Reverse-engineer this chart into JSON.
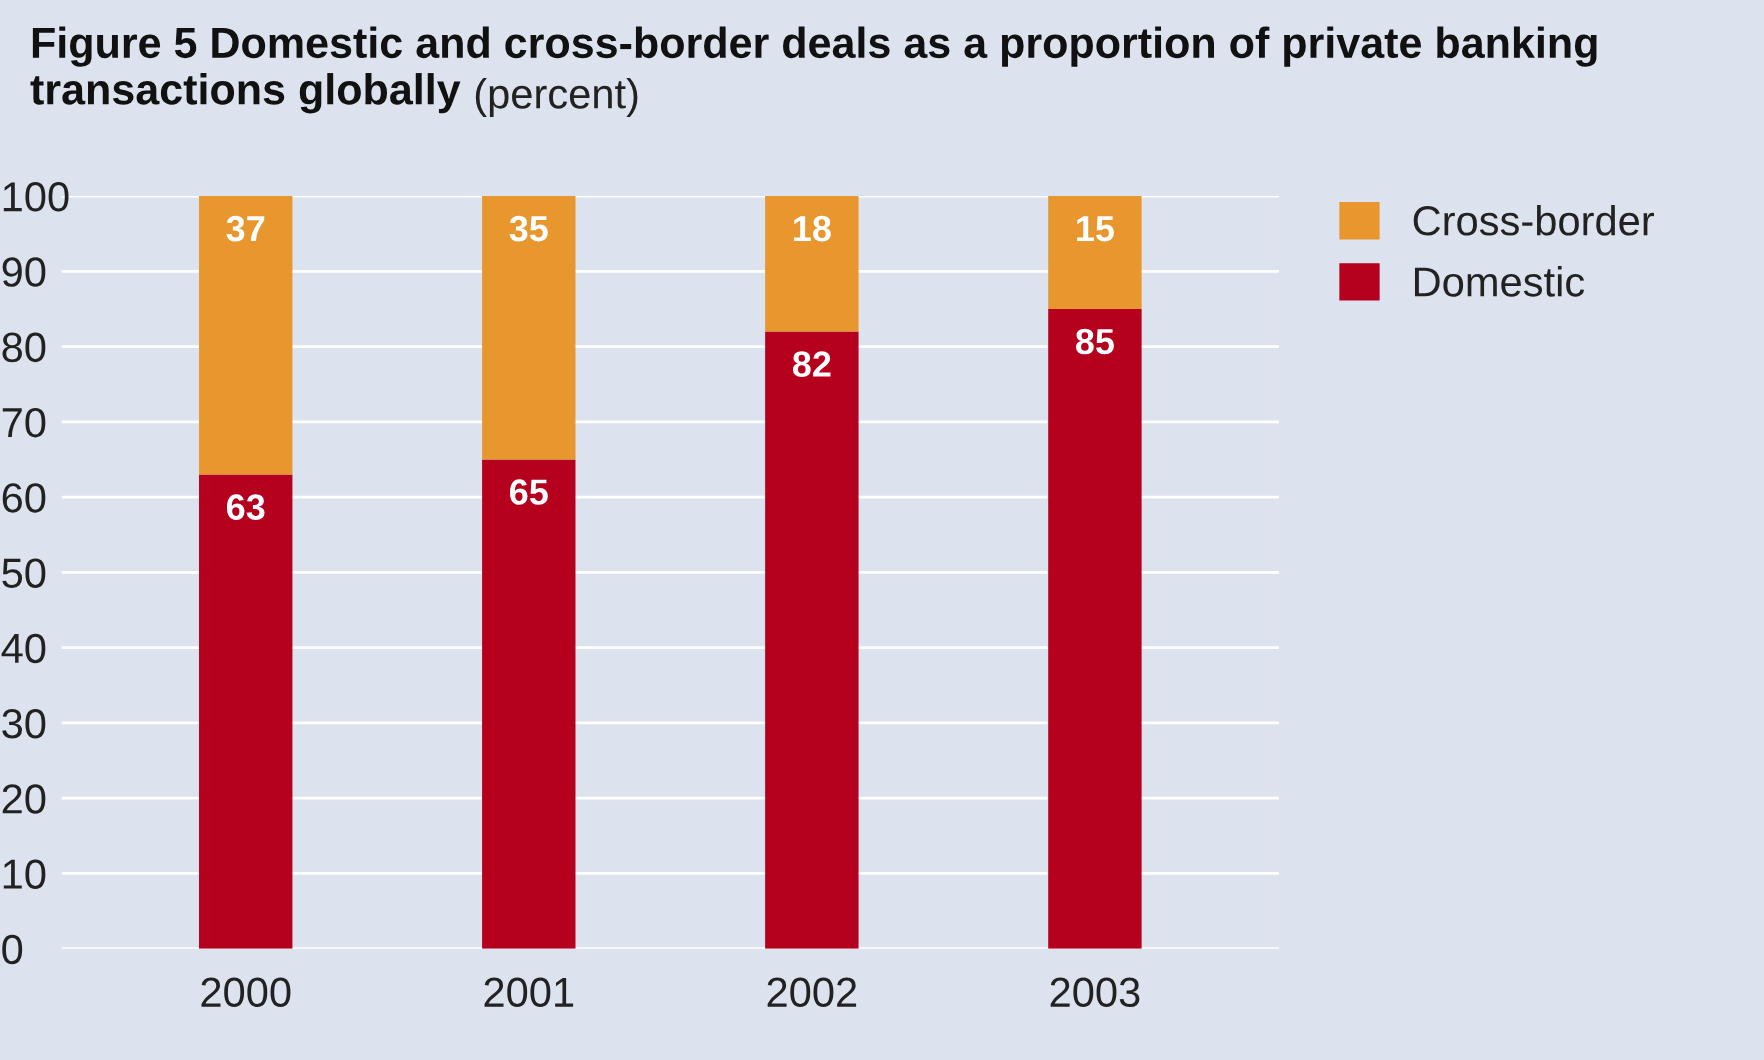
{
  "chart_data": {
    "type": "bar",
    "title": "Figure 5 Domestic and cross-border deals as a proportion of private banking transactions globally",
    "subtitle": "(percent)",
    "categories": [
      "2000",
      "2001",
      "2002",
      "2003"
    ],
    "series": [
      {
        "name": "Domestic",
        "color": "#b5001e",
        "values": [
          63,
          65,
          82,
          85
        ]
      },
      {
        "name": "Cross-border",
        "color": "#e8972f",
        "values": [
          37,
          35,
          18,
          15
        ]
      }
    ],
    "stacked": true,
    "data_labels": true,
    "ylim": [
      0,
      100
    ],
    "yticks": [
      0,
      10,
      20,
      30,
      40,
      50,
      60,
      70,
      80,
      90,
      100
    ],
    "grid": "y",
    "legend": "top right"
  }
}
